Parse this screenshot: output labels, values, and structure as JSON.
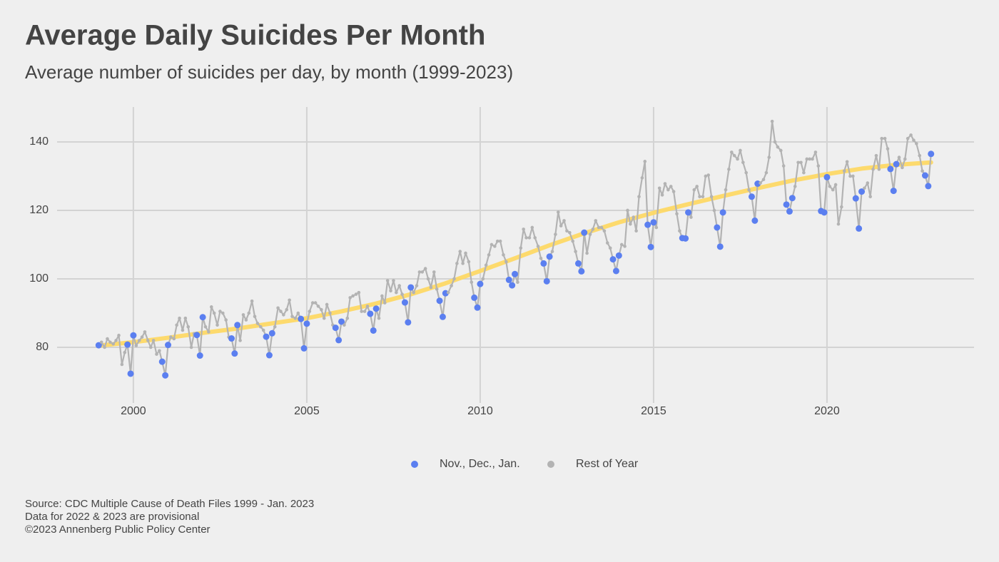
{
  "chart_data": {
    "type": "line",
    "title": "Average Daily Suicides Per Month",
    "subtitle": "Average number of suicides per day, by month (1999-2023)",
    "notes": [
      "Source: CDC Multiple Cause of Death Files 1999 - Jan. 2023",
      "Data for 2022 & 2023 are provisional",
      "©2023 Annenberg Public Policy Center"
    ],
    "series": [
      {
        "name": "Nov., Dec., Jan.",
        "color": "#5b7ff0"
      },
      {
        "name": "Rest of Year",
        "color": "#b3b3b3"
      }
    ],
    "x": [
      1999,
      1999.08,
      1999.17,
      1999.25,
      1999.33,
      1999.42,
      1999.5,
      1999.58,
      1999.67,
      1999.75,
      1999.83,
      1999.92,
      2000,
      2000.08,
      2000.17,
      2000.25,
      2000.33,
      2000.42,
      2000.5,
      2000.58,
      2000.67,
      2000.75,
      2000.83,
      2000.92,
      2001,
      2001.08,
      2001.17,
      2001.25,
      2001.33,
      2001.42,
      2001.5,
      2001.58,
      2001.67,
      2001.75,
      2001.83,
      2001.92,
      2002,
      2002.08,
      2002.17,
      2002.25,
      2002.33,
      2002.42,
      2002.5,
      2002.58,
      2002.67,
      2002.75,
      2002.83,
      2002.92,
      2003,
      2003.08,
      2003.17,
      2003.25,
      2003.33,
      2003.42,
      2003.5,
      2003.58,
      2003.67,
      2003.75,
      2003.83,
      2003.92,
      2004,
      2004.08,
      2004.17,
      2004.25,
      2004.33,
      2004.42,
      2004.5,
      2004.58,
      2004.67,
      2004.75,
      2004.83,
      2004.92,
      2005,
      2005.08,
      2005.17,
      2005.25,
      2005.33,
      2005.42,
      2005.5,
      2005.58,
      2005.67,
      2005.75,
      2005.83,
      2005.92,
      2006,
      2006.08,
      2006.17,
      2006.25,
      2006.33,
      2006.42,
      2006.5,
      2006.58,
      2006.67,
      2006.75,
      2006.83,
      2006.92,
      2007,
      2007.08,
      2007.17,
      2007.25,
      2007.33,
      2007.42,
      2007.5,
      2007.58,
      2007.67,
      2007.75,
      2007.83,
      2007.92,
      2008,
      2008.08,
      2008.17,
      2008.25,
      2008.33,
      2008.42,
      2008.5,
      2008.58,
      2008.67,
      2008.75,
      2008.83,
      2008.92,
      2009,
      2009.08,
      2009.17,
      2009.25,
      2009.33,
      2009.42,
      2009.5,
      2009.58,
      2009.67,
      2009.75,
      2009.83,
      2009.92,
      2010,
      2010.08,
      2010.17,
      2010.25,
      2010.33,
      2010.42,
      2010.5,
      2010.58,
      2010.67,
      2010.75,
      2010.83,
      2010.92,
      2011,
      2011.08,
      2011.17,
      2011.25,
      2011.33,
      2011.42,
      2011.5,
      2011.58,
      2011.67,
      2011.75,
      2011.83,
      2011.92,
      2012,
      2012.08,
      2012.17,
      2012.25,
      2012.33,
      2012.42,
      2012.5,
      2012.58,
      2012.67,
      2012.75,
      2012.83,
      2012.92,
      2013,
      2013.08,
      2013.17,
      2013.25,
      2013.33,
      2013.42,
      2013.5,
      2013.58,
      2013.67,
      2013.75,
      2013.83,
      2013.92,
      2014,
      2014.08,
      2014.17,
      2014.25,
      2014.33,
      2014.42,
      2014.5,
      2014.58,
      2014.67,
      2014.75,
      2014.83,
      2014.92,
      2015,
      2015.08,
      2015.17,
      2015.25,
      2015.33,
      2015.42,
      2015.5,
      2015.58,
      2015.67,
      2015.75,
      2015.83,
      2015.92,
      2016,
      2016.08,
      2016.17,
      2016.25,
      2016.33,
      2016.42,
      2016.5,
      2016.58,
      2016.67,
      2016.75,
      2016.83,
      2016.92,
      2017,
      2017.08,
      2017.17,
      2017.25,
      2017.33,
      2017.42,
      2017.5,
      2017.58,
      2017.67,
      2017.75,
      2017.83,
      2017.92,
      2018,
      2018.08,
      2018.17,
      2018.25,
      2018.33,
      2018.42,
      2018.5,
      2018.58,
      2018.67,
      2018.75,
      2018.83,
      2018.92,
      2019,
      2019.08,
      2019.17,
      2019.25,
      2019.33,
      2019.42,
      2019.5,
      2019.58,
      2019.67,
      2019.75,
      2019.83,
      2019.92,
      2020,
      2020.08,
      2020.17,
      2020.25,
      2020.33,
      2020.42,
      2020.5,
      2020.58,
      2020.67,
      2020.75,
      2020.83,
      2020.92,
      2021,
      2021.08,
      2021.17,
      2021.25,
      2021.33,
      2021.42,
      2021.5,
      2021.58,
      2021.67,
      2021.75,
      2021.83,
      2021.92,
      2022,
      2022.08,
      2022.17,
      2022.25,
      2022.33,
      2022.42,
      2022.5,
      2022.58,
      2022.67,
      2022.75,
      2022.83,
      2022.92,
      2023
    ],
    "values": [
      80.6,
      81.5,
      80,
      82.5,
      81.5,
      81,
      82,
      83.5,
      75,
      78.5,
      80.8,
      72.3,
      83.5,
      80.5,
      82,
      83,
      84.5,
      82,
      80,
      82,
      78,
      79,
      75.8,
      71.8,
      80.7,
      83,
      82.5,
      86.5,
      88.5,
      85,
      88.5,
      86,
      80,
      84,
      83.6,
      77.6,
      88.8,
      86,
      84.5,
      91.8,
      90,
      86.5,
      90.5,
      90,
      88,
      83,
      82.6,
      78.2,
      86.5,
      82,
      89.5,
      88,
      90,
      93.5,
      89,
      87,
      86,
      85,
      83.1,
      77.7,
      84.1,
      86,
      91.5,
      90.5,
      89.5,
      91,
      93.8,
      89,
      88.5,
      90,
      88.3,
      79.7,
      86.9,
      90.5,
      93,
      93,
      92,
      91,
      88.5,
      92.5,
      90,
      86.5,
      85.7,
      82.1,
      87.5,
      86.5,
      88.5,
      94.5,
      95,
      95.5,
      96,
      90.5,
      90.5,
      92,
      89.8,
      84.9,
      91.3,
      88.5,
      95,
      93,
      99.5,
      96.5,
      99.5,
      96,
      98,
      95.5,
      93.1,
      87.3,
      97.5,
      96,
      98,
      102,
      102,
      103,
      100,
      97.5,
      102,
      97,
      93.6,
      88.9,
      95.8,
      96,
      98,
      100,
      104.5,
      108,
      104.5,
      107.5,
      105,
      99,
      94.5,
      91.6,
      98.5,
      100,
      104,
      107,
      110,
      109.5,
      111,
      111,
      107,
      105,
      99.7,
      98.1,
      101.4,
      99,
      109,
      114.5,
      112,
      112,
      115,
      112,
      109.5,
      106,
      104.5,
      99.3,
      106.5,
      108,
      113,
      119.5,
      115.5,
      117,
      114,
      113.5,
      111,
      108,
      104.5,
      102.2,
      113.5,
      107.5,
      113,
      114.5,
      117,
      115,
      115,
      114,
      110.5,
      109,
      105.7,
      102.3,
      106.8,
      110,
      109.5,
      120,
      116,
      118,
      114,
      124,
      129.5,
      134.3,
      115.8,
      109.3,
      116.5,
      115,
      126.5,
      124.5,
      127.8,
      126,
      127,
      125.5,
      119,
      114,
      111.9,
      111.8,
      119.4,
      118,
      126,
      127,
      124,
      124,
      130,
      130.3,
      124,
      120,
      115,
      109.4,
      119.4,
      126,
      132,
      137,
      136,
      135,
      137.5,
      134,
      131,
      126,
      124,
      117,
      127.8,
      128,
      129,
      131,
      135.5,
      146,
      140,
      138.5,
      137.5,
      133,
      121.7,
      119.7,
      123.6,
      127,
      134,
      134,
      131,
      135,
      135,
      135,
      137,
      133,
      119.8,
      119.4,
      129.7,
      127,
      126,
      127.5,
      116,
      121,
      131.5,
      134.2,
      130,
      130,
      123.5,
      114.7,
      125.5,
      126.5,
      128,
      124,
      132,
      136,
      132,
      141,
      141,
      138,
      132.1,
      125.7,
      133.5,
      135.5,
      132.5,
      135,
      141,
      142,
      140.5,
      139.5,
      136,
      131.5,
      130.2,
      127.1,
      136.5
    ],
    "trend": {
      "color": "#fdd865",
      "x": [
        1999,
        2000,
        2001,
        2002,
        2003,
        2004,
        2005,
        2006,
        2007,
        2008,
        2009,
        2010,
        2011,
        2012,
        2013,
        2014,
        2015,
        2016,
        2017,
        2018,
        2019,
        2020,
        2021,
        2022,
        2023
      ],
      "values": [
        80.5,
        81.5,
        82.8,
        84.2,
        85.5,
        87,
        88.5,
        90.5,
        92.8,
        95.5,
        98.7,
        102.3,
        106,
        109.8,
        113.3,
        116.5,
        119.3,
        121.8,
        124.2,
        126.5,
        128.7,
        130.6,
        132.2,
        133.3,
        134
      ]
    },
    "xlim": [
      1997.8,
      2024.24
    ],
    "ylim": [
      63.75,
      150.2
    ],
    "xticks": [
      2000,
      2005,
      2010,
      2015,
      2020
    ],
    "yticks": [
      80,
      100,
      120,
      140
    ],
    "grid": true
  }
}
